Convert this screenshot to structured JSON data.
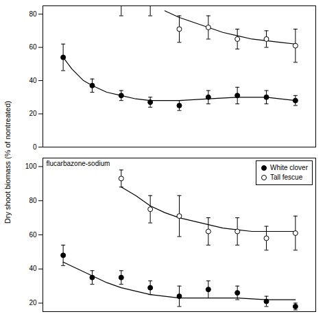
{
  "ylabel": "Dry shoot biomass (% of nontreated)",
  "chart_data": [
    {
      "type": "scatter",
      "xlim": [
        0.3,
        9.7
      ],
      "xticks": [],
      "ylim": [
        0,
        85
      ],
      "yticks": [
        0,
        20,
        40,
        60,
        80
      ],
      "tick_labels": "y",
      "series": [
        {
          "name": "White clover",
          "marker": "circle",
          "color": "#000000",
          "x": [
            1,
            2,
            3,
            4,
            5,
            6,
            7,
            8,
            9
          ],
          "values": [
            54,
            37,
            31,
            27,
            25,
            30,
            31,
            30,
            28
          ],
          "yerr": [
            8,
            4,
            3,
            3,
            3,
            4,
            5,
            4,
            3
          ],
          "fit_x": [
            1.0,
            1.3,
            1.7,
            2.0,
            2.5,
            3.0,
            3.5,
            4.0,
            5.0,
            6.0,
            7.0,
            8.0,
            9.0
          ],
          "fit_values": [
            54,
            47,
            40,
            37,
            33,
            31,
            29,
            28,
            28,
            29,
            30,
            30,
            28
          ]
        },
        {
          "name": "Tall fescue",
          "marker": "open_circle",
          "color": "#000000",
          "x": [
            5,
            6,
            7,
            8,
            9
          ],
          "values": [
            71,
            72,
            65,
            65,
            61
          ],
          "yerr": [
            8,
            7,
            6,
            5,
            10
          ],
          "fit_x": [
            4.5,
            5.0,
            5.5,
            6.0,
            6.5,
            7.0,
            7.5,
            8.0,
            8.5,
            9.0
          ],
          "fit_values": [
            82,
            78,
            75,
            72,
            69,
            67,
            65,
            64,
            63,
            62
          ],
          "offscale_x": [
            3,
            4
          ],
          "offscale_err_low": [
            79,
            79
          ]
        }
      ]
    },
    {
      "type": "scatter",
      "xlim": [
        0.3,
        9.7
      ],
      "xticks": [],
      "ylim": [
        15,
        105
      ],
      "yticks": [
        20,
        40,
        60,
        80,
        100
      ],
      "tick_labels": "y",
      "annotation": "flucarbazone-sodium",
      "legend": "upper right",
      "series": [
        {
          "name": "White clover",
          "marker": "circle",
          "color": "#000000",
          "x": [
            1,
            2,
            3,
            4,
            5,
            6,
            7,
            8,
            9
          ],
          "values": [
            48,
            35,
            35,
            29,
            24,
            28,
            26,
            21,
            18
          ],
          "yerr": [
            6,
            4,
            4,
            4,
            6,
            5,
            4,
            3,
            2
          ],
          "fit_x": [
            1.0,
            1.5,
            2.0,
            2.5,
            3.0,
            3.5,
            4.0,
            4.5,
            5.0,
            6.0,
            7.0,
            8.0,
            9.0
          ],
          "fit_values": [
            44,
            40,
            36,
            32,
            29,
            27,
            25,
            24,
            23,
            23,
            23,
            22,
            22
          ]
        },
        {
          "name": "Tall fescue",
          "marker": "open_circle",
          "color": "#000000",
          "x": [
            3,
            4,
            5,
            6,
            7,
            8,
            9
          ],
          "values": [
            93,
            75,
            71,
            62,
            62,
            58,
            61
          ],
          "yerr": [
            5,
            8,
            12,
            8,
            8,
            7,
            10
          ],
          "fit_x": [
            3.0,
            3.5,
            4.0,
            4.5,
            5.0,
            5.5,
            6.0,
            6.5,
            7.0,
            7.5,
            8.0,
            8.5,
            9.0
          ],
          "fit_values": [
            88,
            83,
            77,
            73,
            70,
            68,
            66,
            64,
            63,
            62,
            62,
            62,
            62
          ]
        }
      ]
    }
  ]
}
